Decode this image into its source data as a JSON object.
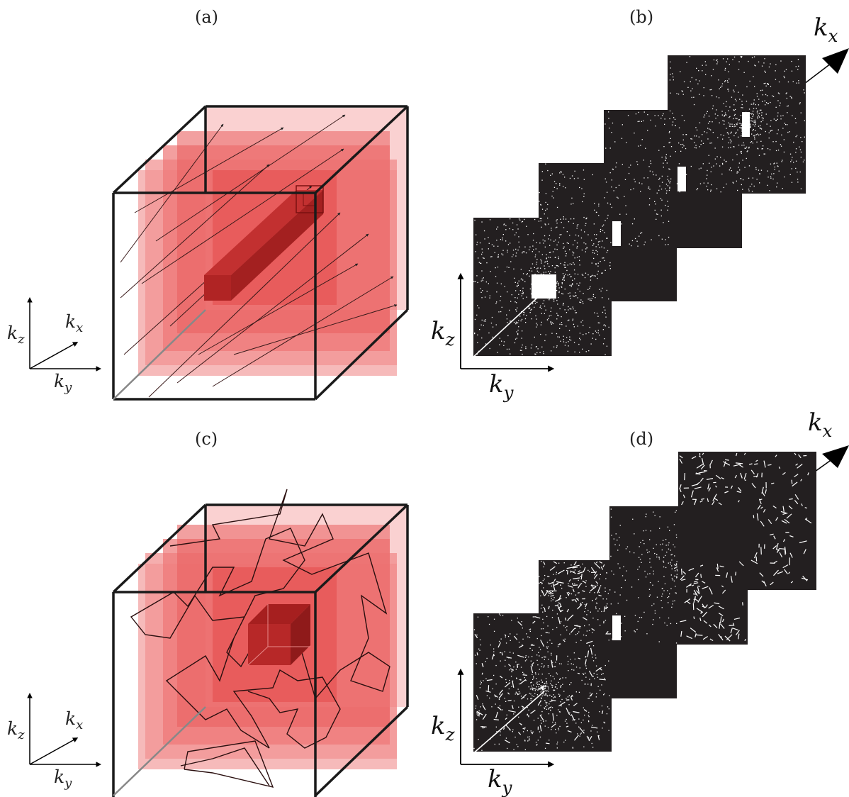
{
  "panels": {
    "a": {
      "label": "(a)"
    },
    "b": {
      "label": "(b)"
    },
    "c": {
      "label": "(c)"
    },
    "d": {
      "label": "(d)"
    }
  },
  "axes": {
    "kz": {
      "base": "k",
      "sub": "z"
    },
    "kx": {
      "base": "k",
      "sub": "x"
    },
    "ky": {
      "base": "k",
      "sub": "y"
    }
  },
  "colors": {
    "cube_edge": "#1a1a1a",
    "slab_light": "#f4a6a6",
    "slab_mid": "#ef7f7f",
    "slab_dark": "#e65a5a",
    "core": "#b82525",
    "slice_bg": "#231f20",
    "speckle": "#ffffff"
  }
}
